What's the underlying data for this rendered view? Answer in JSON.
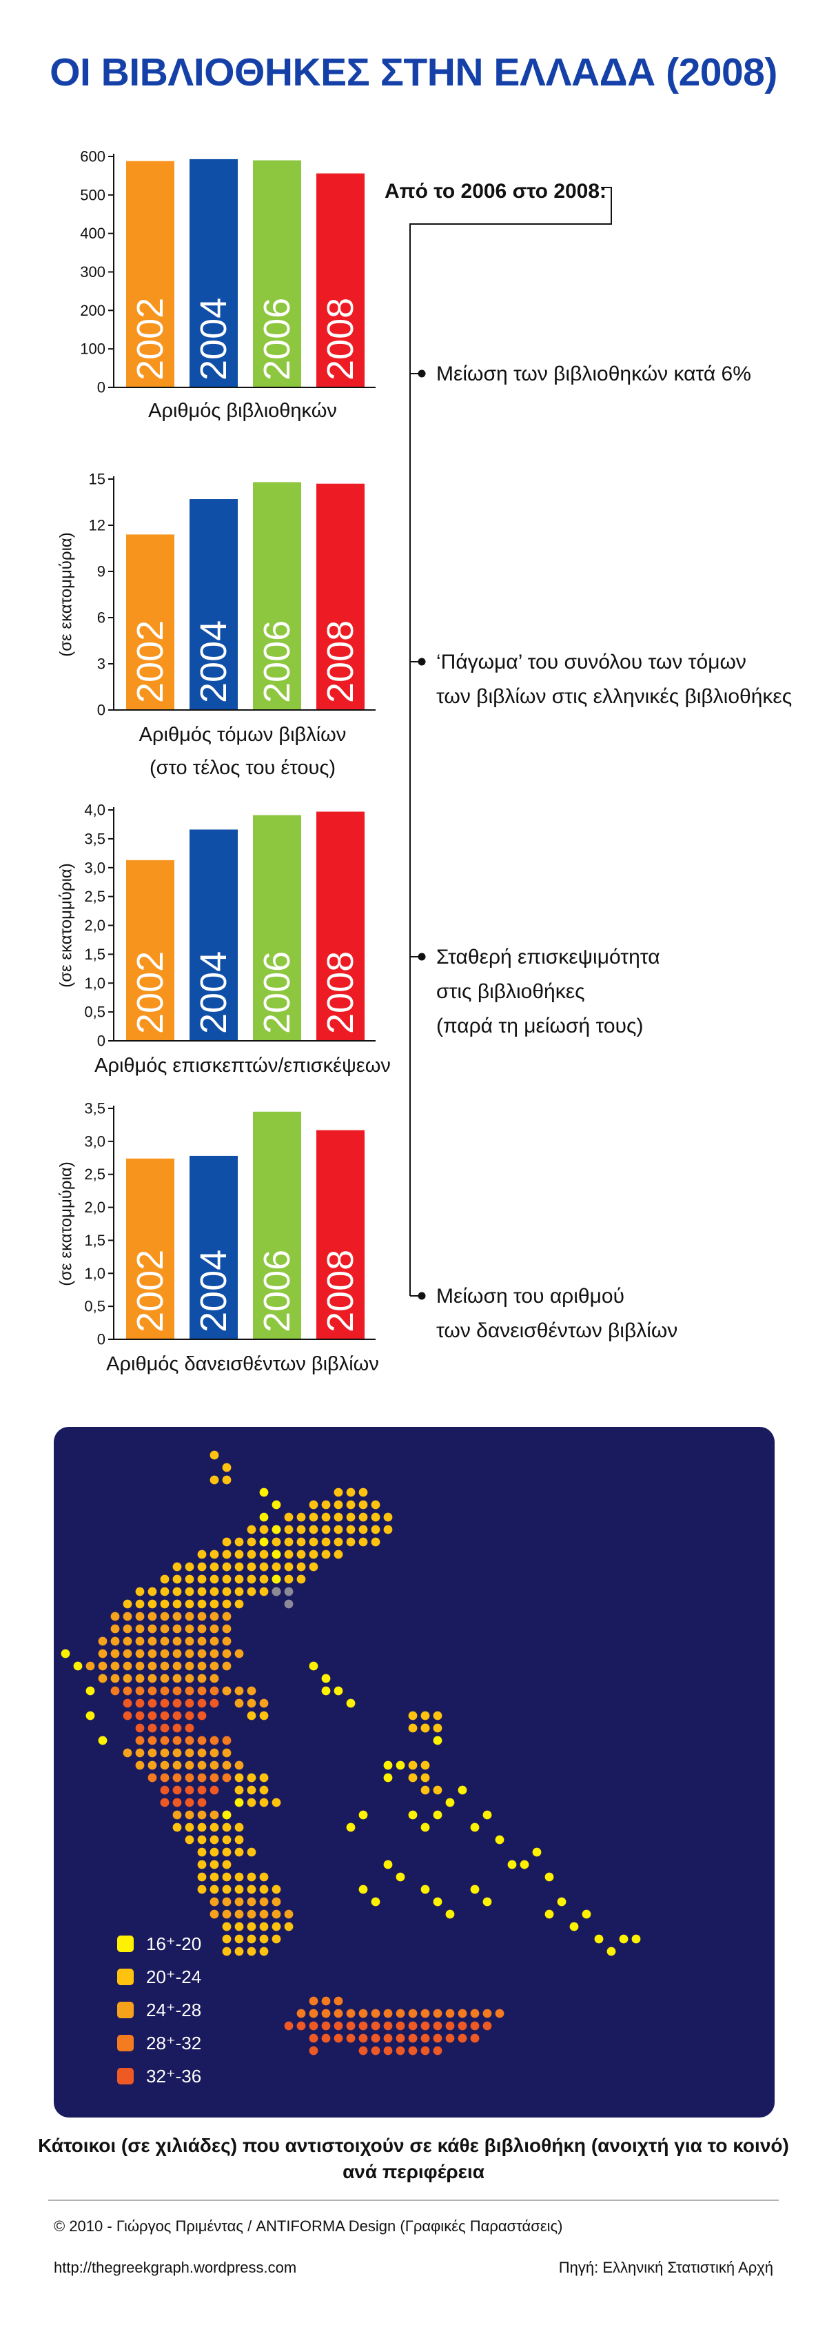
{
  "title": "ΟΙ ΒΙΒΛΙΟΘΗΚΕΣ ΣΤΗΝ ΕΛΛΑΔΑ (2008)",
  "colors": {
    "2002": "#f7941d",
    "2004": "#0f4fa8",
    "2006": "#8dc63f",
    "2008": "#ed1c24",
    "title": "#1440a8",
    "map_bg": "#1a1a5e"
  },
  "chart_data": [
    {
      "type": "bar",
      "categories": [
        "2002",
        "2004",
        "2006",
        "2008"
      ],
      "values": [
        588,
        593,
        590,
        556
      ],
      "ylim": [
        0,
        600
      ],
      "yticks": [
        "0",
        "100",
        "200",
        "300",
        "400",
        "500",
        "600"
      ],
      "xlabel": "Αριθμός βιβλιοθηκών",
      "ylabel": ""
    },
    {
      "type": "bar",
      "categories": [
        "2002",
        "2004",
        "2006",
        "2008"
      ],
      "values": [
        11.4,
        13.7,
        14.8,
        14.7
      ],
      "ylim": [
        0,
        15
      ],
      "yticks": [
        "0",
        "3",
        "6",
        "9",
        "12",
        "15"
      ],
      "xlabel": "Αριθμός τόμων βιβλίων",
      "xlabel2": "(στο τέλος του έτους)",
      "ylabel": "(σε εκατομμύρια)"
    },
    {
      "type": "bar",
      "categories": [
        "2002",
        "2004",
        "2006",
        "2008"
      ],
      "values": [
        3.13,
        3.66,
        3.91,
        3.97
      ],
      "ylim": [
        0,
        4
      ],
      "yticks": [
        "0",
        "0,5",
        "1,0",
        "1,5",
        "2,0",
        "2,5",
        "3,0",
        "3,5",
        "4,0"
      ],
      "xlabel": "Αριθμός επισκεπτών/επισκέψεων",
      "ylabel": "(σε εκατομμύρια)"
    },
    {
      "type": "bar",
      "categories": [
        "2002",
        "2004",
        "2006",
        "2008"
      ],
      "values": [
        2.74,
        2.78,
        3.45,
        3.17
      ],
      "ylim": [
        0,
        3.5
      ],
      "yticks": [
        "0",
        "0,5",
        "1,0",
        "1,5",
        "2,0",
        "2,5",
        "3,0",
        "3,5"
      ],
      "xlabel": "Αριθμός δανεισθέντων βιβλίων",
      "ylabel": "(σε εκατομμύρια)"
    }
  ],
  "annotations": {
    "header": "Από το 2006 στο 2008:",
    "items": [
      [
        "Μείωση των βιβλιοθηκών κατά 6%"
      ],
      [
        "‘Πάγωμα’ του συνόλου των τόμων",
        "των βιβλίων στις ελληνικές βιβλιοθήκες"
      ],
      [
        "Σταθερή επισκεψιμότητα",
        "στις βιβλιοθήκες",
        "(παρά τη μείωσή τους)"
      ],
      [
        "Μείωση του αριθμού",
        "των δανεισθέντων βιβλίων"
      ]
    ]
  },
  "map": {
    "legend": [
      {
        "color": "#fff200",
        "label": "16⁺-20"
      },
      {
        "color": "#ffc20e",
        "label": "20⁺-24"
      },
      {
        "color": "#f7a21b",
        "label": "24⁺-28"
      },
      {
        "color": "#f47b20",
        "label": "28⁺-32"
      },
      {
        "color": "#ef5a24",
        "label": "32⁺-36"
      }
    ],
    "caption_line1": "Κάτοικοι (σε χιλιάδες) που αντιστοιχούν σε κάθε βιβλιοθήκη (ανοιχτή για το κοινό)",
    "caption_line2": "ανά περιφέρεια"
  },
  "footer": {
    "credit": "© 2010 - Γιώργος Πριμέντας / ANTIFORMA Design (Γραφικές Παραστάσεις)",
    "url": "http://thegreekgraph.wordpress.com",
    "source": "Πηγή: Ελληνική Στατιστική Αρχή"
  }
}
